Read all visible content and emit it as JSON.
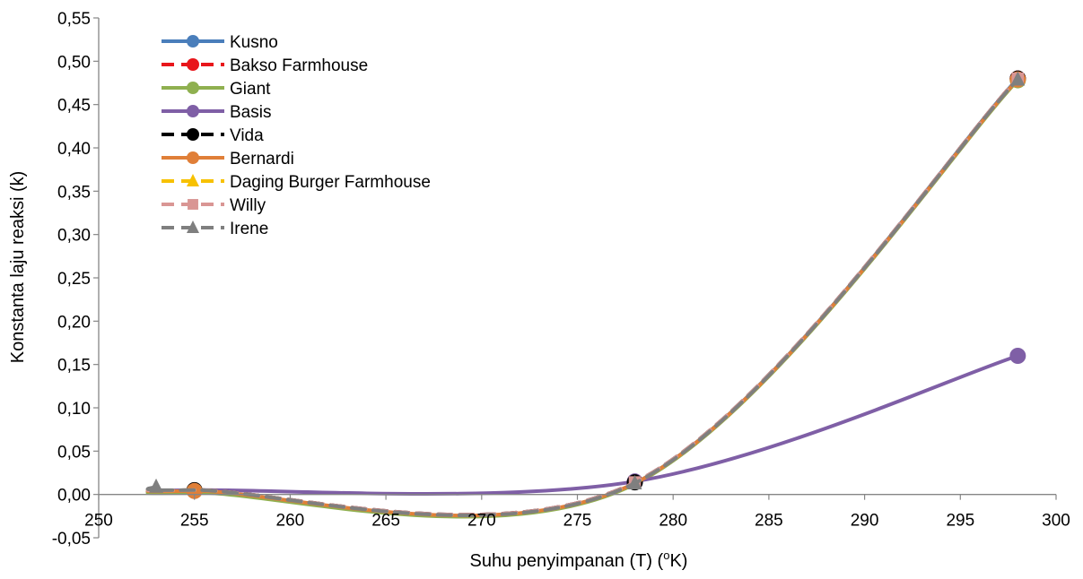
{
  "chart_data": {
    "type": "line",
    "xlabel": "Suhu penyimpanan (T) (°K)",
    "xlabel_main": "Suhu penyimpanan (T) (",
    "xlabel_sup": "o",
    "xlabel_tail": "K)",
    "ylabel": "Konstanta laju reaksi (k)",
    "xlim": [
      250,
      300
    ],
    "ylim": [
      -0.05,
      0.55
    ],
    "x_ticks": [
      "250",
      "255",
      "260",
      "265",
      "270",
      "275",
      "280",
      "285",
      "290",
      "295",
      "300"
    ],
    "x_tick_values": [
      250,
      255,
      260,
      265,
      270,
      275,
      280,
      285,
      290,
      295,
      300
    ],
    "y_ticks": [
      "-0,05",
      "0,00",
      "0,05",
      "0,10",
      "0,15",
      "0,20",
      "0,25",
      "0,30",
      "0,35",
      "0,40",
      "0,45",
      "0,50",
      "0,55"
    ],
    "y_tick_values": [
      -0.05,
      0,
      0.05,
      0.1,
      0.15,
      0.2,
      0.25,
      0.3,
      0.35,
      0.4,
      0.45,
      0.5,
      0.55
    ],
    "grid": false,
    "legend_position": "top-left",
    "x": [
      253,
      255,
      278,
      298
    ],
    "series": [
      {
        "name": "Kusno",
        "values": [
          0.005,
          0.003,
          0.013,
          0.48
        ],
        "color": "#4a7ebb",
        "dash": "solid",
        "marker": "circle",
        "show_markers": [
          false,
          false,
          false,
          true
        ]
      },
      {
        "name": "Bakso Farmhouse",
        "values": [
          0.006,
          0.004,
          0.013,
          0.48
        ],
        "color": "#e8161b",
        "dash": "dashed",
        "marker": "circle",
        "show_markers": [
          false,
          false,
          false,
          true
        ]
      },
      {
        "name": "Giant",
        "values": [
          0.003,
          0.002,
          0.012,
          0.478
        ],
        "color": "#8fb050",
        "dash": "solid",
        "marker": "circle",
        "show_markers": [
          false,
          false,
          false,
          true
        ]
      },
      {
        "name": "Basis",
        "values": [
          0.006,
          0.005,
          0.015,
          0.16
        ],
        "color": "#7f5fa6",
        "dash": "solid",
        "marker": "circle",
        "show_markers": [
          false,
          false,
          true,
          true
        ]
      },
      {
        "name": "Vida",
        "values": [
          0.006,
          0.005,
          0.014,
          0.48
        ],
        "color": "#000000",
        "dash": "dashed",
        "marker": "circle",
        "show_markers": [
          false,
          true,
          true,
          true
        ]
      },
      {
        "name": "Bernardi",
        "values": [
          0.005,
          0.004,
          0.013,
          0.479
        ],
        "color": "#e07f38",
        "dash": "solid",
        "marker": "circle",
        "show_markers": [
          false,
          true,
          false,
          true
        ]
      },
      {
        "name": "Daging Burger Farmhouse",
        "values": [
          0.006,
          0.005,
          0.013,
          0.479
        ],
        "color": "#f7c100",
        "dash": "dashed",
        "marker": "triangle",
        "show_markers": [
          false,
          false,
          false,
          false
        ]
      },
      {
        "name": "Willy",
        "values": [
          0.006,
          0.005,
          0.014,
          0.48
        ],
        "color": "#d99694",
        "dash": "dashed",
        "marker": "square",
        "show_markers": [
          false,
          false,
          true,
          true
        ]
      },
      {
        "name": "Irene",
        "values": [
          0.009,
          0.005,
          0.013,
          0.479
        ],
        "color": "#7f7f7f",
        "dash": "dashed",
        "marker": "triangle",
        "show_markers": [
          true,
          false,
          true,
          true
        ]
      }
    ]
  }
}
